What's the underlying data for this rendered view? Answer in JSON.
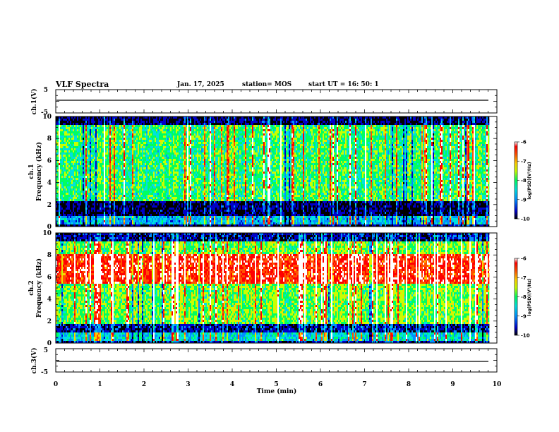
{
  "header": {
    "title": "VLF Spectra",
    "date": "Jan. 17, 2025",
    "station": "station= MOS",
    "start": "start  UT =  16: 50: 1"
  },
  "chart_data": [
    {
      "type": "line",
      "name": "ch1-waveform",
      "ylabel": "ch.1(V)",
      "ylim": [
        -5,
        5
      ],
      "yticks": [
        "5",
        "-5"
      ],
      "xlim": [
        0,
        10
      ],
      "baseline": 0
    },
    {
      "type": "heatmap",
      "name": "ch1-spectrogram",
      "ylabel": "ch.1\nFrequency (kHz)",
      "ylabel_lines": [
        "ch.1",
        "Frequency (kHz)"
      ],
      "ylim": [
        0,
        10
      ],
      "yticks": [
        "0",
        "2",
        "4",
        "6",
        "8",
        "10"
      ],
      "xlim": [
        0,
        9.83
      ],
      "colorbar": {
        "label": "log(PSD)(V²/Hz)",
        "range": [
          -10,
          -6
        ],
        "ticks": [
          "-6",
          "-7",
          "-8",
          "-9",
          "-10"
        ],
        "colors": [
          "#000000",
          "#0000c8",
          "#0090ff",
          "#00e0e0",
          "#00ff60",
          "#c8ff00",
          "#ffd200",
          "#ff5000",
          "#ff0000",
          "#ffffff"
        ]
      },
      "noise_bands_khz": [
        {
          "low": 0.0,
          "high": 0.3,
          "level": "dark"
        },
        {
          "low": 0.3,
          "high": 1.0,
          "level": "mid"
        },
        {
          "low": 1.0,
          "high": 2.4,
          "level": "dark"
        },
        {
          "low": 2.4,
          "high": 9.3,
          "level": "high"
        },
        {
          "low": 9.3,
          "high": 10.0,
          "level": "dark"
        }
      ]
    },
    {
      "type": "heatmap",
      "name": "ch2-spectrogram",
      "ylabel_lines": [
        "ch.2",
        "Frequency (kHz)"
      ],
      "ylim": [
        0,
        10
      ],
      "yticks": [
        "0",
        "2",
        "4",
        "6",
        "8",
        "10"
      ],
      "xlim": [
        0,
        9.83
      ],
      "colorbar": {
        "label": "log(PSD)(V²/Hz)",
        "range": [
          -10,
          -6
        ],
        "ticks": [
          "-6",
          "-7",
          "-8",
          "-9",
          "-10"
        ]
      },
      "noise_bands_khz": [
        {
          "low": 0.0,
          "high": 0.3,
          "level": "dark"
        },
        {
          "low": 0.3,
          "high": 1.0,
          "level": "mid"
        },
        {
          "low": 1.0,
          "high": 1.9,
          "level": "dark"
        },
        {
          "low": 1.9,
          "high": 5.5,
          "level": "high"
        },
        {
          "low": 5.5,
          "high": 8.2,
          "level": "peak"
        },
        {
          "low": 8.2,
          "high": 9.4,
          "level": "high"
        },
        {
          "low": 9.4,
          "high": 10.0,
          "level": "dark"
        }
      ]
    },
    {
      "type": "line",
      "name": "ch3-waveform",
      "ylabel": "ch.3(V)",
      "ylim": [
        -5,
        5
      ],
      "yticks": [
        "5",
        "-5"
      ],
      "xlim": [
        0,
        10
      ],
      "baseline": 0
    }
  ],
  "xaxis": {
    "label": "Time (min)",
    "ticks": [
      "0",
      "1",
      "2",
      "3",
      "4",
      "5",
      "6",
      "7",
      "8",
      "9",
      "10"
    ],
    "range": [
      0,
      10
    ]
  }
}
